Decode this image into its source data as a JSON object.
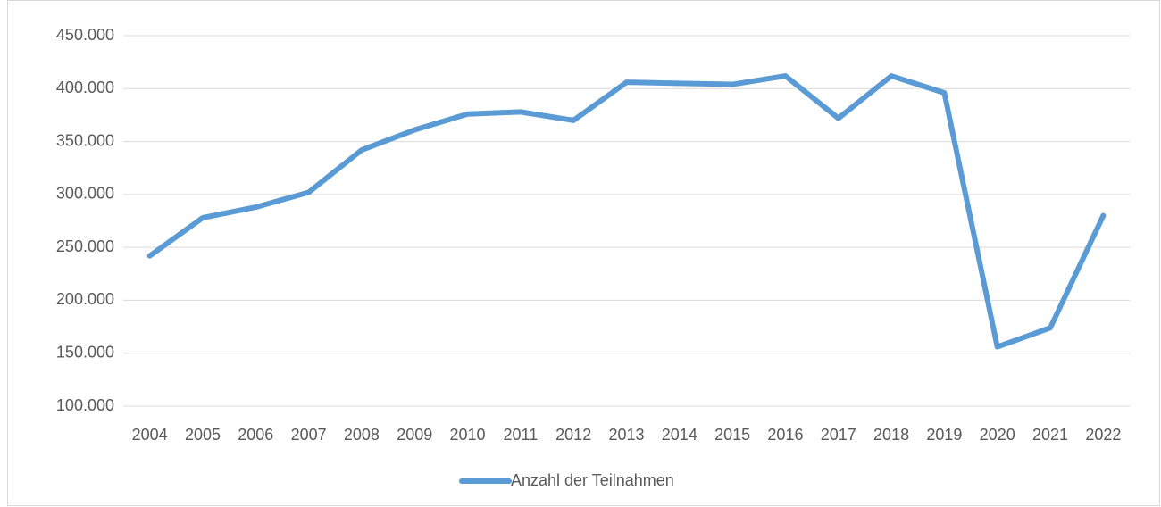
{
  "chart_data": {
    "type": "line",
    "categories": [
      "2004",
      "2005",
      "2006",
      "2007",
      "2008",
      "2009",
      "2010",
      "2011",
      "2012",
      "2013",
      "2014",
      "2015",
      "2016",
      "2017",
      "2018",
      "2019",
      "2020",
      "2021",
      "2022"
    ],
    "series": [
      {
        "name": "Anzahl der Teilnahmen",
        "color": "#5b9bd5",
        "values": [
          242000,
          278000,
          288000,
          302000,
          342000,
          361000,
          376000,
          378000,
          370000,
          406000,
          405000,
          404000,
          412000,
          372000,
          412000,
          396000,
          156000,
          174000,
          280000
        ]
      }
    ],
    "ylim": [
      100000,
      450000
    ],
    "yticks": [
      {
        "value": 100000,
        "label": "100.000"
      },
      {
        "value": 150000,
        "label": "150.000"
      },
      {
        "value": 200000,
        "label": "200.000"
      },
      {
        "value": 250000,
        "label": "250.000"
      },
      {
        "value": 300000,
        "label": "300.000"
      },
      {
        "value": 350000,
        "label": "350.000"
      },
      {
        "value": 400000,
        "label": "400.000"
      },
      {
        "value": 450000,
        "label": "450.000"
      }
    ],
    "grid": true,
    "legend": "bottom"
  }
}
